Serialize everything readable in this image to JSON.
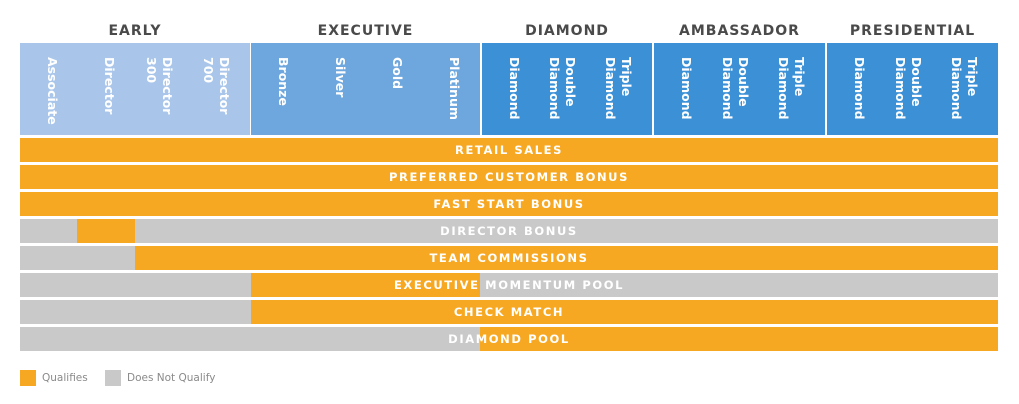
{
  "groups": [
    {
      "label": "EARLY"
    },
    {
      "label": "EXECUTIVE"
    },
    {
      "label": "DIAMOND"
    },
    {
      "label": "AMBASSADOR"
    },
    {
      "label": "PRESIDENTIAL"
    }
  ],
  "ranks": {
    "early": [
      "Associate",
      "Director",
      "Director\n300",
      "Director\n700"
    ],
    "executive": [
      "Bronze",
      "Silver",
      "Gold",
      "Platinum"
    ],
    "diamond": [
      "Diamond",
      "Double\nDiamond",
      "Triple\nDiamond"
    ],
    "ambassador": [
      "Diamond",
      "Double\nDiamond",
      "Triple\nDiamond"
    ],
    "presidential": [
      "Diamond",
      "Double\nDiamond",
      "Triple\nDiamond"
    ]
  },
  "rows": [
    {
      "label": "RETAIL SALES"
    },
    {
      "label": "PREFERRED CUSTOMER BONUS"
    },
    {
      "label": "FAST START BONUS"
    },
    {
      "label": "DIRECTOR BONUS"
    },
    {
      "label": "TEAM COMMISSIONS"
    },
    {
      "label": "EXECUTIVE MOMENTUM POOL"
    },
    {
      "label": "CHECK MATCH"
    },
    {
      "label": "DIAMOND POOL"
    }
  ],
  "legend": {
    "qualifies": "Qualifies",
    "does_not_qualify": "Does Not Qualify"
  },
  "colors": {
    "qualifies": "#f7a823",
    "does_not_qualify": "#c9c9c9",
    "early_header": "#a9c6ea",
    "executive_header": "#6ea7de",
    "diamond_header": "#3b90d6"
  }
}
